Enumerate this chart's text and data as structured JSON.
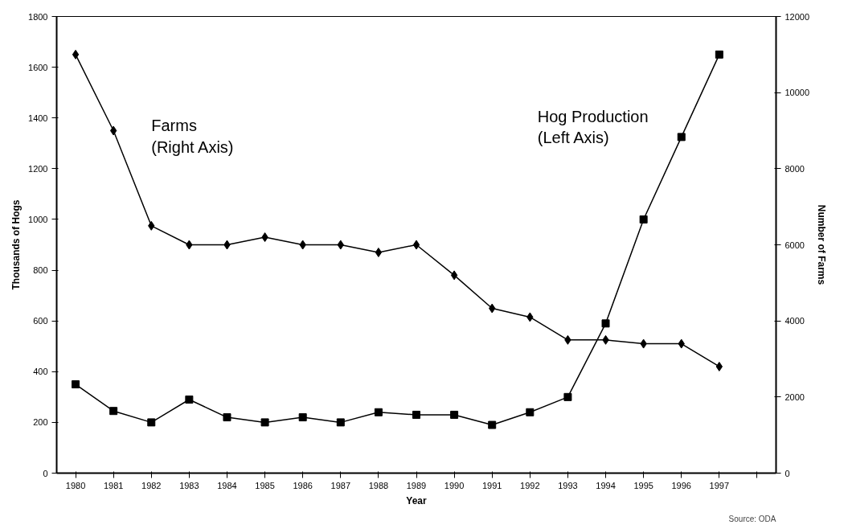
{
  "chart_data": {
    "type": "line",
    "xlabel": "Year",
    "ylabel": "Thousands of Hogs",
    "y2label": "Number of Farms",
    "categories": [
      "1980",
      "1981",
      "1982",
      "1983",
      "1984",
      "1985",
      "1986",
      "1987",
      "1988",
      "1989",
      "1990",
      "1991",
      "1992",
      "1993",
      "1994",
      "1995",
      "1996",
      "1997",
      null
    ],
    "series": [
      {
        "name": "Farms\n(Right Axis)",
        "color": "#000000",
        "axis": "y2",
        "marker": "diamond",
        "values": [
          11000,
          9000,
          6500,
          6000,
          6000,
          6200,
          6000,
          6000,
          5800,
          6000,
          5200,
          4330,
          4100,
          3500,
          3500,
          3400,
          3400,
          2800,
          null
        ]
      },
      {
        "name": "Hog Production\n(Left Axis)",
        "color": "#000000",
        "marker": "square",
        "values": [
          350,
          245,
          200,
          290,
          220,
          200,
          220,
          200,
          240,
          230,
          230,
          190,
          240,
          300,
          590,
          1000,
          1325,
          1650,
          null
        ]
      }
    ],
    "ylim": [
      0,
      1800
    ],
    "yticks": [
      0,
      200,
      400,
      600,
      800,
      1000,
      1200,
      1400,
      1600,
      1800
    ],
    "y2lim": [
      0,
      12000
    ],
    "y2ticks": [
      0,
      2000,
      4000,
      6000,
      8000,
      10000,
      12000
    ],
    "grid": false,
    "line_style": "solid",
    "annotations": [
      "Source: ODA"
    ]
  }
}
